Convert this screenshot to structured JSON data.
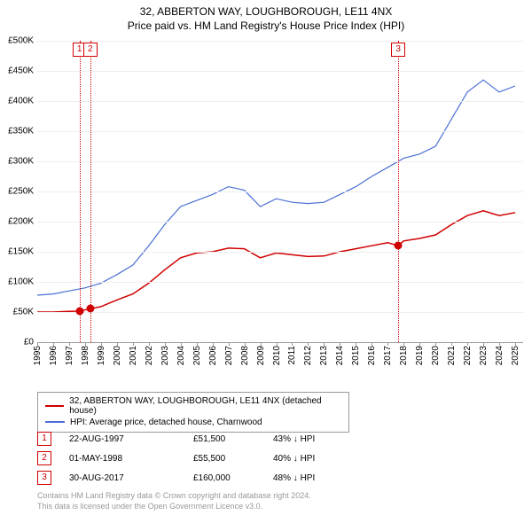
{
  "title_line1": "32, ABBERTON WAY, LOUGHBOROUGH, LE11 4NX",
  "title_line2": "Price paid vs. HM Land Registry's House Price Index (HPI)",
  "chart": {
    "background_color": "#ffffff",
    "grid_color": "#eeeeee",
    "axis_color": "#999999",
    "text_color": "#000000",
    "label_fontsize": 10,
    "title_fontsize": 12,
    "x": {
      "min": 1995,
      "max": 2025.5,
      "ticks": [
        1995,
        1996,
        1997,
        1998,
        1999,
        2000,
        2001,
        2002,
        2003,
        2004,
        2005,
        2006,
        2007,
        2008,
        2009,
        2010,
        2011,
        2012,
        2013,
        2014,
        2015,
        2016,
        2017,
        2018,
        2019,
        2020,
        2021,
        2022,
        2023,
        2024,
        2025
      ]
    },
    "y": {
      "min": 0,
      "max": 500000,
      "tick_step": 50000,
      "prefix": "£",
      "labels": [
        "£0",
        "£50K",
        "£100K",
        "£150K",
        "£200K",
        "£250K",
        "£300K",
        "£350K",
        "£400K",
        "£450K",
        "£500K"
      ]
    },
    "series": [
      {
        "id": "price_paid",
        "label": "32, ABBERTON WAY, LOUGHBOROUGH, LE11 4NX (detached house)",
        "color": "#d00000",
        "line_width": 1.5,
        "points": [
          [
            1995.0,
            50000
          ],
          [
            1996.0,
            50000
          ],
          [
            1997.0,
            51000
          ],
          [
            1997.65,
            51500
          ],
          [
            1998.33,
            55500
          ],
          [
            1999.0,
            59000
          ],
          [
            2000.0,
            70000
          ],
          [
            2001.0,
            80000
          ],
          [
            2002.0,
            98000
          ],
          [
            2003.0,
            120000
          ],
          [
            2004.0,
            140000
          ],
          [
            2005.0,
            148000
          ],
          [
            2006.0,
            150000
          ],
          [
            2007.0,
            156000
          ],
          [
            2008.0,
            155000
          ],
          [
            2009.0,
            140000
          ],
          [
            2010.0,
            148000
          ],
          [
            2011.0,
            145000
          ],
          [
            2012.0,
            142000
          ],
          [
            2013.0,
            143000
          ],
          [
            2014.0,
            150000
          ],
          [
            2015.0,
            155000
          ],
          [
            2016.0,
            160000
          ],
          [
            2017.0,
            165000
          ],
          [
            2017.66,
            160000
          ],
          [
            2018.0,
            168000
          ],
          [
            2019.0,
            172000
          ],
          [
            2020.0,
            178000
          ],
          [
            2021.0,
            195000
          ],
          [
            2022.0,
            210000
          ],
          [
            2023.0,
            218000
          ],
          [
            2024.0,
            210000
          ],
          [
            2025.0,
            215000
          ]
        ]
      },
      {
        "id": "hpi",
        "label": "HPI: Average price, detached house, Charnwood",
        "color": "#4a6fd4",
        "line_width": 1.2,
        "points": [
          [
            1995.0,
            78000
          ],
          [
            1996.0,
            80000
          ],
          [
            1997.0,
            85000
          ],
          [
            1998.0,
            90000
          ],
          [
            1999.0,
            98000
          ],
          [
            2000.0,
            112000
          ],
          [
            2001.0,
            128000
          ],
          [
            2002.0,
            160000
          ],
          [
            2003.0,
            195000
          ],
          [
            2004.0,
            225000
          ],
          [
            2005.0,
            235000
          ],
          [
            2006.0,
            245000
          ],
          [
            2007.0,
            258000
          ],
          [
            2008.0,
            252000
          ],
          [
            2009.0,
            225000
          ],
          [
            2010.0,
            238000
          ],
          [
            2011.0,
            232000
          ],
          [
            2012.0,
            230000
          ],
          [
            2013.0,
            232000
          ],
          [
            2014.0,
            245000
          ],
          [
            2015.0,
            258000
          ],
          [
            2016.0,
            275000
          ],
          [
            2017.0,
            290000
          ],
          [
            2018.0,
            305000
          ],
          [
            2019.0,
            312000
          ],
          [
            2020.0,
            325000
          ],
          [
            2021.0,
            370000
          ],
          [
            2022.0,
            415000
          ],
          [
            2023.0,
            435000
          ],
          [
            2024.0,
            415000
          ],
          [
            2025.0,
            425000
          ]
        ]
      }
    ],
    "sale_markers": [
      {
        "n": "1",
        "year": 1997.65,
        "price": 51500
      },
      {
        "n": "2",
        "year": 1998.33,
        "price": 55500
      },
      {
        "n": "3",
        "year": 2017.66,
        "price": 160000
      }
    ]
  },
  "legend": {
    "items": [
      {
        "color": "#d00000",
        "label": "32, ABBERTON WAY, LOUGHBOROUGH, LE11 4NX (detached house)"
      },
      {
        "color": "#4a6fd4",
        "label": "HPI: Average price, detached house, Charnwood"
      }
    ]
  },
  "sales": [
    {
      "n": "1",
      "date": "22-AUG-1997",
      "price": "£51,500",
      "diff": "43% ↓ HPI"
    },
    {
      "n": "2",
      "date": "01-MAY-1998",
      "price": "£55,500",
      "diff": "40% ↓ HPI"
    },
    {
      "n": "3",
      "date": "30-AUG-2017",
      "price": "£160,000",
      "diff": "48% ↓ HPI"
    }
  ],
  "footer_line1": "Contains HM Land Registry data © Crown copyright and database right 2024.",
  "footer_line2": "This data is licensed under the Open Government Licence v3.0."
}
